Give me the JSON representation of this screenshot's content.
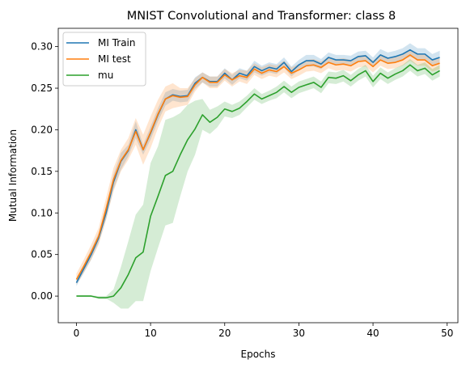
{
  "chart_data": {
    "type": "line",
    "title": "MNIST Convolutional and Transformer: class 8",
    "xlabel": "Epochs",
    "ylabel": "Mutual Information",
    "xlim": [
      -2.45,
      51.45
    ],
    "ylim": [
      -0.032,
      0.322
    ],
    "xticks": [
      0,
      10,
      20,
      30,
      40,
      50
    ],
    "yticks": [
      0.0,
      0.05,
      0.1,
      0.15,
      0.2,
      0.25,
      0.3
    ],
    "ytick_labels": [
      "0.00",
      "0.05",
      "0.10",
      "0.15",
      "0.20",
      "0.25",
      "0.30"
    ],
    "legend_position": "top-left",
    "x": [
      0,
      1,
      2,
      3,
      4,
      5,
      6,
      7,
      8,
      9,
      10,
      11,
      12,
      13,
      14,
      15,
      16,
      17,
      18,
      19,
      20,
      21,
      22,
      23,
      24,
      25,
      26,
      27,
      28,
      29,
      30,
      31,
      32,
      33,
      34,
      35,
      36,
      37,
      38,
      39,
      40,
      41,
      42,
      43,
      44,
      45,
      46,
      47,
      48,
      49
    ],
    "series": [
      {
        "name": "MI Train",
        "color": "#1f77b4",
        "values": [
          0.016,
          0.033,
          0.05,
          0.07,
          0.1,
          0.137,
          0.162,
          0.175,
          0.2,
          0.176,
          0.196,
          0.218,
          0.237,
          0.242,
          0.24,
          0.241,
          0.256,
          0.263,
          0.258,
          0.258,
          0.268,
          0.26,
          0.268,
          0.265,
          0.276,
          0.271,
          0.275,
          0.273,
          0.281,
          0.27,
          0.278,
          0.283,
          0.283,
          0.279,
          0.287,
          0.284,
          0.284,
          0.283,
          0.288,
          0.289,
          0.281,
          0.29,
          0.286,
          0.288,
          0.291,
          0.296,
          0.291,
          0.291,
          0.284,
          0.287
        ],
        "lower": [
          0.012,
          0.028,
          0.044,
          0.064,
          0.092,
          0.128,
          0.152,
          0.168,
          0.19,
          0.17,
          0.188,
          0.21,
          0.229,
          0.235,
          0.233,
          0.234,
          0.249,
          0.257,
          0.252,
          0.252,
          0.262,
          0.254,
          0.262,
          0.259,
          0.269,
          0.265,
          0.269,
          0.267,
          0.275,
          0.264,
          0.272,
          0.276,
          0.276,
          0.273,
          0.281,
          0.278,
          0.278,
          0.277,
          0.282,
          0.283,
          0.275,
          0.283,
          0.279,
          0.281,
          0.284,
          0.288,
          0.284,
          0.284,
          0.277,
          0.279
        ],
        "upper": [
          0.02,
          0.038,
          0.056,
          0.076,
          0.108,
          0.146,
          0.172,
          0.182,
          0.21,
          0.182,
          0.204,
          0.226,
          0.245,
          0.249,
          0.247,
          0.248,
          0.263,
          0.269,
          0.264,
          0.264,
          0.274,
          0.266,
          0.274,
          0.271,
          0.283,
          0.277,
          0.281,
          0.279,
          0.287,
          0.276,
          0.284,
          0.29,
          0.29,
          0.285,
          0.293,
          0.29,
          0.29,
          0.289,
          0.294,
          0.295,
          0.287,
          0.297,
          0.293,
          0.295,
          0.298,
          0.304,
          0.298,
          0.298,
          0.291,
          0.295
        ]
      },
      {
        "name": "MI test",
        "color": "#ff7f0e",
        "values": [
          0.02,
          0.036,
          0.053,
          0.072,
          0.105,
          0.14,
          0.163,
          0.176,
          0.198,
          0.176,
          0.197,
          0.219,
          0.237,
          0.241,
          0.239,
          0.24,
          0.254,
          0.263,
          0.257,
          0.257,
          0.266,
          0.26,
          0.265,
          0.263,
          0.273,
          0.268,
          0.272,
          0.27,
          0.276,
          0.268,
          0.272,
          0.277,
          0.278,
          0.275,
          0.281,
          0.278,
          0.279,
          0.277,
          0.282,
          0.283,
          0.276,
          0.284,
          0.28,
          0.281,
          0.284,
          0.29,
          0.284,
          0.284,
          0.277,
          0.28
        ],
        "lower": [
          0.014,
          0.028,
          0.044,
          0.062,
          0.092,
          0.126,
          0.15,
          0.164,
          0.182,
          0.158,
          0.178,
          0.202,
          0.222,
          0.226,
          0.228,
          0.23,
          0.246,
          0.257,
          0.25,
          0.25,
          0.259,
          0.252,
          0.258,
          0.255,
          0.266,
          0.261,
          0.265,
          0.263,
          0.269,
          0.261,
          0.265,
          0.27,
          0.271,
          0.268,
          0.274,
          0.271,
          0.272,
          0.27,
          0.275,
          0.276,
          0.269,
          0.277,
          0.273,
          0.274,
          0.277,
          0.283,
          0.277,
          0.277,
          0.27,
          0.273
        ],
        "upper": [
          0.027,
          0.044,
          0.062,
          0.082,
          0.118,
          0.154,
          0.176,
          0.19,
          0.214,
          0.194,
          0.216,
          0.236,
          0.252,
          0.256,
          0.25,
          0.25,
          0.262,
          0.269,
          0.264,
          0.264,
          0.273,
          0.268,
          0.272,
          0.271,
          0.28,
          0.275,
          0.279,
          0.277,
          0.283,
          0.275,
          0.279,
          0.284,
          0.285,
          0.282,
          0.288,
          0.285,
          0.286,
          0.284,
          0.289,
          0.29,
          0.283,
          0.291,
          0.287,
          0.288,
          0.291,
          0.297,
          0.291,
          0.291,
          0.284,
          0.287
        ]
      },
      {
        "name": "mu",
        "color": "#2ca02c",
        "values": [
          0.0,
          0.0,
          0.0,
          -0.002,
          -0.002,
          0.0,
          0.01,
          0.026,
          0.046,
          0.053,
          0.096,
          0.12,
          0.145,
          0.15,
          0.17,
          0.188,
          0.201,
          0.218,
          0.209,
          0.215,
          0.225,
          0.222,
          0.226,
          0.234,
          0.243,
          0.237,
          0.241,
          0.245,
          0.252,
          0.245,
          0.251,
          0.254,
          0.257,
          0.251,
          0.263,
          0.262,
          0.265,
          0.259,
          0.266,
          0.271,
          0.258,
          0.268,
          0.262,
          0.267,
          0.271,
          0.278,
          0.271,
          0.274,
          0.266,
          0.271
        ],
        "lower": [
          0.0,
          0.0,
          0.0,
          -0.003,
          -0.003,
          -0.008,
          -0.015,
          -0.015,
          -0.006,
          -0.006,
          0.03,
          0.058,
          0.085,
          0.088,
          0.12,
          0.15,
          0.17,
          0.2,
          0.195,
          0.203,
          0.216,
          0.214,
          0.218,
          0.227,
          0.236,
          0.231,
          0.235,
          0.238,
          0.245,
          0.238,
          0.244,
          0.247,
          0.25,
          0.244,
          0.256,
          0.255,
          0.258,
          0.252,
          0.259,
          0.264,
          0.251,
          0.261,
          0.255,
          0.26,
          0.264,
          0.271,
          0.264,
          0.267,
          0.259,
          0.264
        ],
        "upper": [
          0.001,
          0.001,
          0.001,
          0.0,
          0.0,
          0.008,
          0.035,
          0.066,
          0.098,
          0.11,
          0.16,
          0.18,
          0.212,
          0.215,
          0.22,
          0.23,
          0.235,
          0.237,
          0.224,
          0.228,
          0.234,
          0.23,
          0.234,
          0.241,
          0.25,
          0.243,
          0.247,
          0.252,
          0.259,
          0.252,
          0.258,
          0.261,
          0.264,
          0.258,
          0.27,
          0.269,
          0.272,
          0.266,
          0.273,
          0.278,
          0.265,
          0.275,
          0.269,
          0.274,
          0.278,
          0.285,
          0.278,
          0.281,
          0.273,
          0.278
        ]
      }
    ]
  }
}
